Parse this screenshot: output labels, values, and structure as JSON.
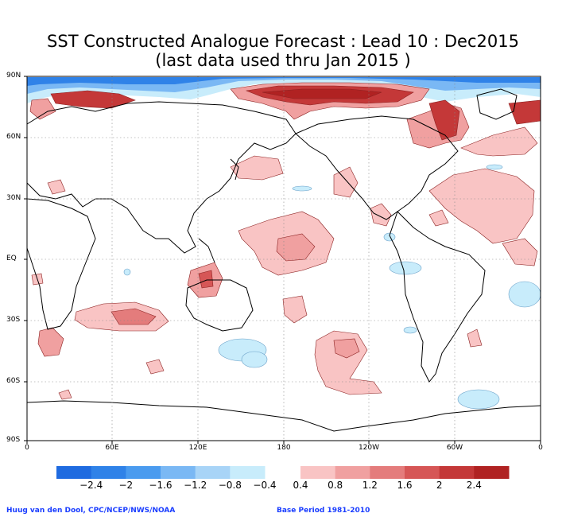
{
  "title": {
    "line1": "SST Constructed Analogue Forecast : Lead 10 : Dec2015",
    "line2": "(last data used thru Jan 2015 )"
  },
  "axes": {
    "lat_labels": [
      "90N",
      "60N",
      "30N",
      "EQ",
      "30S",
      "60S",
      "90S"
    ],
    "lon_labels": [
      "0",
      "60E",
      "120E",
      "180",
      "120W",
      "60W",
      "0"
    ]
  },
  "colorbar": {
    "labels": [
      "−2.4",
      "−2",
      "−1.6",
      "−1.2",
      "−0.8",
      "−0.4",
      "0.4",
      "0.8",
      "1.2",
      "1.6",
      "2",
      "2.4"
    ],
    "negative_colors": [
      "#1f6be0",
      "#2f82e8",
      "#4a9bef",
      "#7ab8f4",
      "#a8d4f7",
      "#c8ecfb"
    ],
    "positive_colors": [
      "#f9c4c4",
      "#f0a0a0",
      "#e47c7c",
      "#d65656",
      "#c43838",
      "#b02222"
    ]
  },
  "footer": {
    "left": "Huug van den Dool, CPC/NCEP/NWS/NOAA",
    "right": "Base Period 1981-2010"
  }
}
